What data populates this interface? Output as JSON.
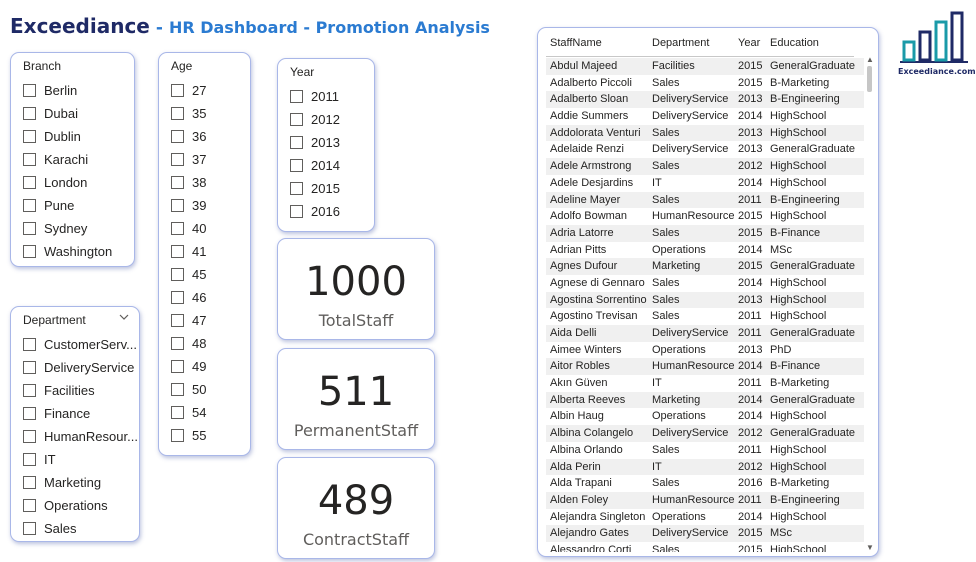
{
  "header": {
    "brand": "Exceediance",
    "separator": "-",
    "subtitle": "HR Dashboard - Promotion Analysis"
  },
  "logo": {
    "text": "Exceediance.com",
    "color": "#1a9aa8"
  },
  "slicers": {
    "branch": {
      "title": "Branch",
      "items": [
        "Berlin",
        "Dubai",
        "Dublin",
        "Karachi",
        "London",
        "Pune",
        "Sydney",
        "Washington"
      ]
    },
    "age": {
      "title": "Age",
      "items": [
        "27",
        "35",
        "36",
        "37",
        "38",
        "39",
        "40",
        "41",
        "45",
        "46",
        "47",
        "48",
        "49",
        "50",
        "54",
        "55"
      ]
    },
    "year": {
      "title": "Year",
      "items": [
        "2011",
        "2012",
        "2013",
        "2014",
        "2015",
        "2016"
      ]
    },
    "department": {
      "title": "Department",
      "items": [
        "CustomerServ...",
        "DeliveryService",
        "Facilities",
        "Finance",
        "HumanResour...",
        "IT",
        "Marketing",
        "Operations",
        "Sales"
      ]
    }
  },
  "kpis": {
    "total": {
      "value": "1000",
      "label": "TotalStaff"
    },
    "permanent": {
      "value": "511",
      "label": "PermanentStaff"
    },
    "contract": {
      "value": "489",
      "label": "ContractStaff"
    }
  },
  "table": {
    "columns": [
      "StaffName",
      "Department",
      "Year",
      "Education"
    ],
    "rows": [
      [
        "Abdul Majeed",
        "Facilities",
        "2015",
        "GeneralGraduate"
      ],
      [
        "Adalberto Piccoli",
        "Sales",
        "2015",
        "B-Marketing"
      ],
      [
        "Adalberto Sloan",
        "DeliveryService",
        "2013",
        "B-Engineering"
      ],
      [
        "Addie Summers",
        "DeliveryService",
        "2014",
        "HighSchool"
      ],
      [
        "Addolorata Venturi",
        "Sales",
        "2013",
        "HighSchool"
      ],
      [
        "Adelaide Renzi",
        "DeliveryService",
        "2013",
        "GeneralGraduate"
      ],
      [
        "Adele Armstrong",
        "Sales",
        "2012",
        "HighSchool"
      ],
      [
        "Adele Desjardins",
        "IT",
        "2014",
        "HighSchool"
      ],
      [
        "Adeline Mayer",
        "Sales",
        "2011",
        "B-Engineering"
      ],
      [
        "Adolfo Bowman",
        "HumanResource",
        "2015",
        "HighSchool"
      ],
      [
        "Adria Latorre",
        "Sales",
        "2015",
        "B-Finance"
      ],
      [
        "Adrian Pitts",
        "Operations",
        "2014",
        "MSc"
      ],
      [
        "Agnes Dufour",
        "Marketing",
        "2015",
        "GeneralGraduate"
      ],
      [
        "Agnese di Gennaro",
        "Sales",
        "2014",
        "HighSchool"
      ],
      [
        "Agostina Sorrentino",
        "Sales",
        "2013",
        "HighSchool"
      ],
      [
        "Agostino Trevisan",
        "Sales",
        "2011",
        "HighSchool"
      ],
      [
        "Aida Delli",
        "DeliveryService",
        "2011",
        "GeneralGraduate"
      ],
      [
        "Aimee Winters",
        "Operations",
        "2013",
        "PhD"
      ],
      [
        "Aitor Robles",
        "HumanResource",
        "2014",
        "B-Finance"
      ],
      [
        "Akın Güven",
        "IT",
        "2011",
        "B-Marketing"
      ],
      [
        "Alberta Reeves",
        "Marketing",
        "2014",
        "GeneralGraduate"
      ],
      [
        "Albin Haug",
        "Operations",
        "2014",
        "HighSchool"
      ],
      [
        "Albina Colangelo",
        "DeliveryService",
        "2012",
        "GeneralGraduate"
      ],
      [
        "Albina Orlando",
        "Sales",
        "2011",
        "HighSchool"
      ],
      [
        "Alda Perin",
        "IT",
        "2012",
        "HighSchool"
      ],
      [
        "Alda Trapani",
        "Sales",
        "2016",
        "B-Marketing"
      ],
      [
        "Alden Foley",
        "HumanResource",
        "2011",
        "B-Engineering"
      ],
      [
        "Alejandra Singleton",
        "Operations",
        "2014",
        "HighSchool"
      ],
      [
        "Alejandro Gates",
        "DeliveryService",
        "2015",
        "MSc"
      ],
      [
        "Alessandro Corti",
        "Sales",
        "2015",
        "HighSchool"
      ]
    ]
  }
}
